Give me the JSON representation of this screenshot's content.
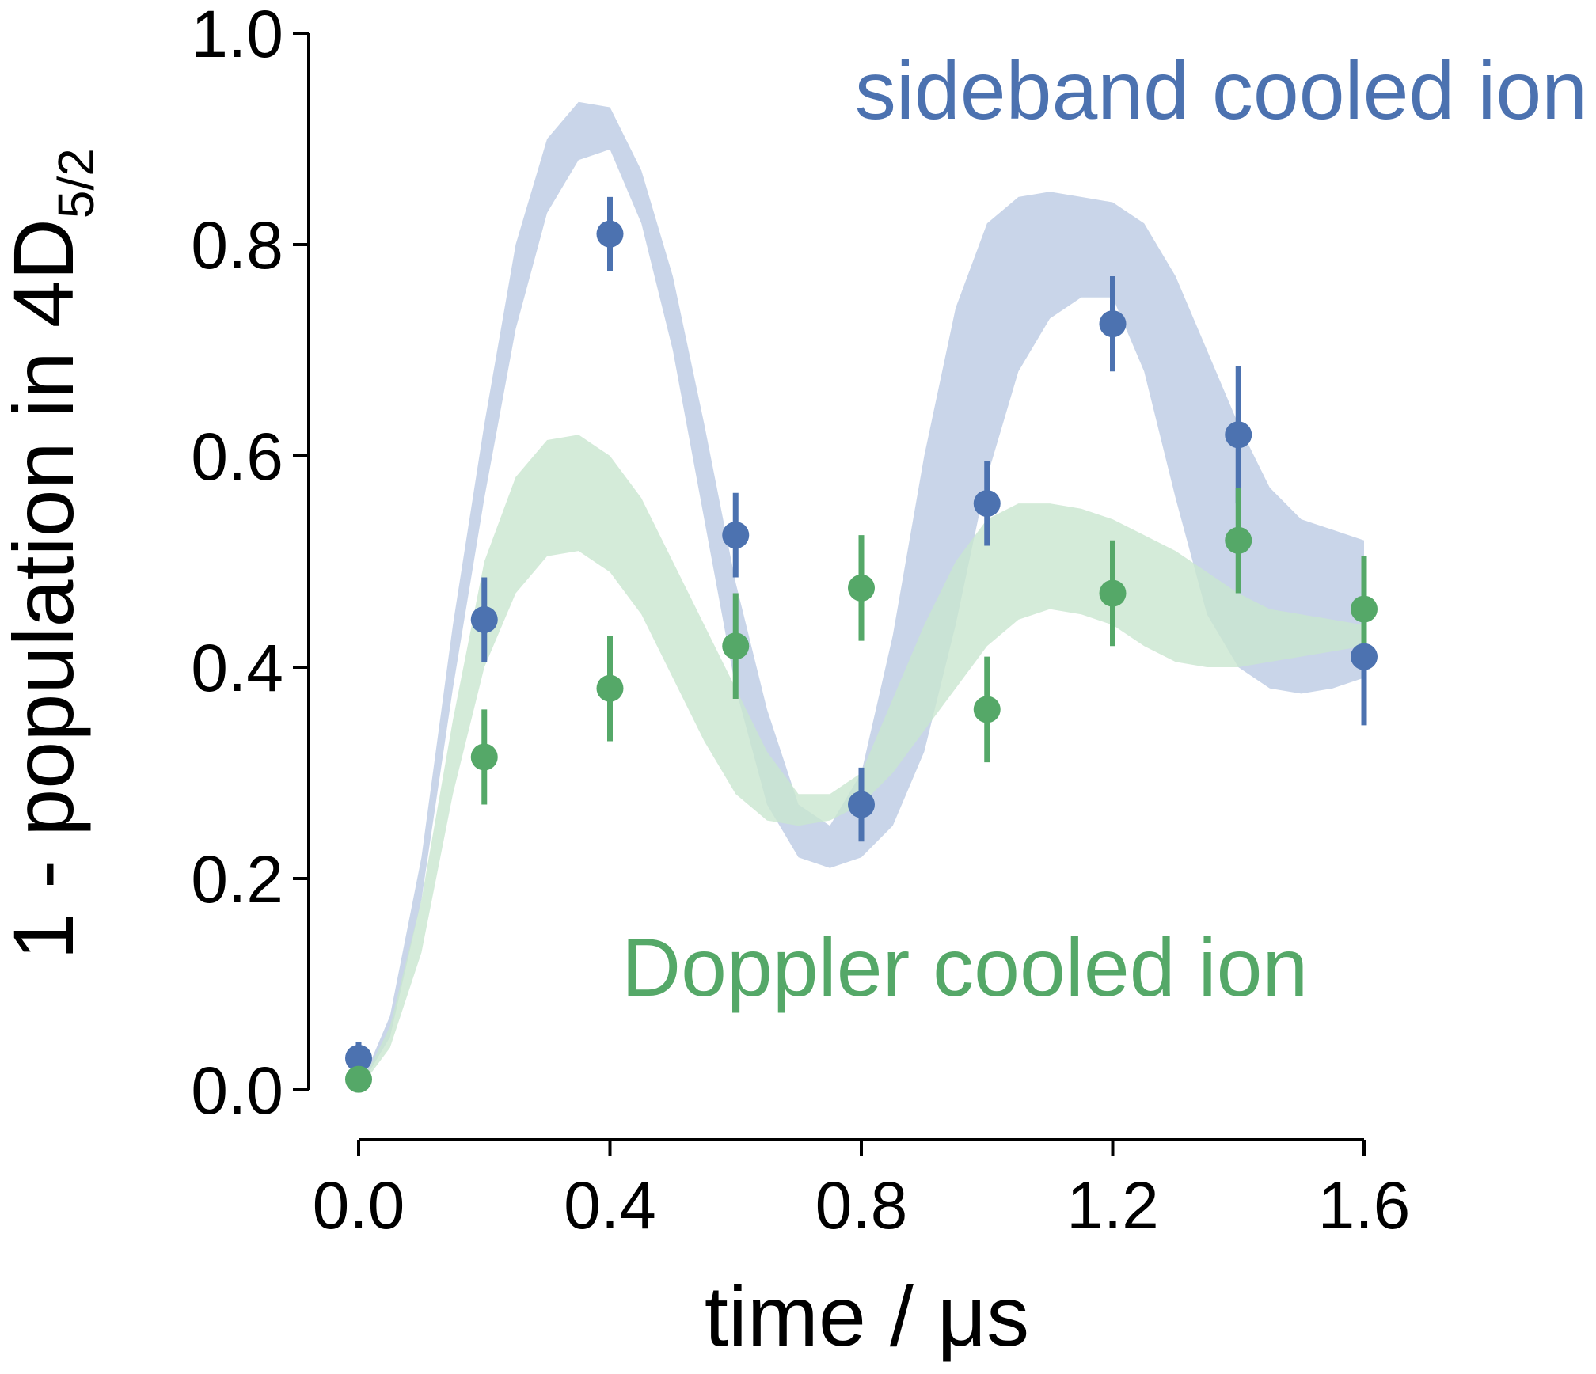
{
  "chart_data": {
    "type": "scatter",
    "xlabel": "time / μs",
    "ylabel": {
      "main": "1 - population in 4D",
      "subscript": "5/2"
    },
    "xlim": [
      0.0,
      1.6
    ],
    "ylim": [
      0.0,
      1.0
    ],
    "xticks": [
      "0.0",
      "0.4",
      "0.8",
      "1.2",
      "1.6"
    ],
    "yticks": [
      "0.0",
      "0.2",
      "0.4",
      "0.6",
      "0.8",
      "1.0"
    ],
    "grid": false,
    "legend": "text annotations inside plot",
    "series": [
      {
        "name": "sideband cooled ion",
        "color": "#4c72b0",
        "band_color": "#c6d3e8",
        "x": [
          0.0,
          0.2,
          0.4,
          0.6,
          0.8,
          1.0,
          1.2,
          1.4,
          1.6
        ],
        "y": [
          0.03,
          0.445,
          0.81,
          0.525,
          0.27,
          0.555,
          0.725,
          0.62,
          0.41
        ],
        "err": [
          0.015,
          0.04,
          0.035,
          0.04,
          0.035,
          0.04,
          0.045,
          0.065,
          0.065
        ],
        "band": {
          "x": [
            0.0,
            0.05,
            0.1,
            0.15,
            0.2,
            0.25,
            0.3,
            0.35,
            0.4,
            0.45,
            0.5,
            0.55,
            0.6,
            0.65,
            0.7,
            0.75,
            0.8,
            0.85,
            0.9,
            0.95,
            1.0,
            1.05,
            1.1,
            1.15,
            1.2,
            1.25,
            1.3,
            1.35,
            1.4,
            1.45,
            1.5,
            1.55,
            1.6
          ],
          "upper": [
            0.0,
            0.07,
            0.22,
            0.44,
            0.63,
            0.8,
            0.9,
            0.935,
            0.93,
            0.87,
            0.77,
            0.63,
            0.48,
            0.36,
            0.27,
            0.25,
            0.3,
            0.43,
            0.6,
            0.74,
            0.82,
            0.845,
            0.85,
            0.845,
            0.84,
            0.82,
            0.77,
            0.7,
            0.63,
            0.57,
            0.54,
            0.53,
            0.52
          ],
          "lower": [
            0.0,
            0.05,
            0.18,
            0.38,
            0.56,
            0.72,
            0.83,
            0.88,
            0.89,
            0.82,
            0.7,
            0.54,
            0.38,
            0.27,
            0.22,
            0.21,
            0.22,
            0.25,
            0.32,
            0.44,
            0.58,
            0.68,
            0.73,
            0.75,
            0.75,
            0.68,
            0.56,
            0.45,
            0.4,
            0.38,
            0.375,
            0.38,
            0.39
          ]
        }
      },
      {
        "name": "Doppler cooled ion",
        "color": "#55a868",
        "band_color": "#c9e6cf",
        "x": [
          0.0,
          0.2,
          0.4,
          0.6,
          0.8,
          1.0,
          1.2,
          1.4,
          1.6
        ],
        "y": [
          0.01,
          0.315,
          0.38,
          0.42,
          0.475,
          0.36,
          0.47,
          0.52,
          0.455
        ],
        "err": [
          0.01,
          0.045,
          0.05,
          0.05,
          0.05,
          0.05,
          0.05,
          0.05,
          0.05
        ],
        "band": {
          "x": [
            0.0,
            0.05,
            0.1,
            0.15,
            0.2,
            0.25,
            0.3,
            0.35,
            0.4,
            0.45,
            0.5,
            0.55,
            0.6,
            0.65,
            0.7,
            0.75,
            0.8,
            0.85,
            0.9,
            0.95,
            1.0,
            1.05,
            1.1,
            1.15,
            1.2,
            1.25,
            1.3,
            1.35,
            1.4,
            1.45,
            1.5,
            1.55,
            1.6
          ],
          "upper": [
            0.0,
            0.06,
            0.18,
            0.35,
            0.5,
            0.58,
            0.615,
            0.62,
            0.6,
            0.56,
            0.5,
            0.44,
            0.38,
            0.32,
            0.28,
            0.28,
            0.3,
            0.37,
            0.44,
            0.5,
            0.54,
            0.555,
            0.555,
            0.55,
            0.54,
            0.525,
            0.51,
            0.49,
            0.47,
            0.455,
            0.45,
            0.445,
            0.44
          ],
          "lower": [
            0.0,
            0.04,
            0.13,
            0.28,
            0.4,
            0.47,
            0.505,
            0.51,
            0.49,
            0.45,
            0.39,
            0.33,
            0.28,
            0.255,
            0.25,
            0.255,
            0.27,
            0.3,
            0.34,
            0.38,
            0.42,
            0.445,
            0.455,
            0.45,
            0.44,
            0.42,
            0.405,
            0.4,
            0.4,
            0.405,
            0.41,
            0.415,
            0.42
          ]
        }
      }
    ]
  }
}
